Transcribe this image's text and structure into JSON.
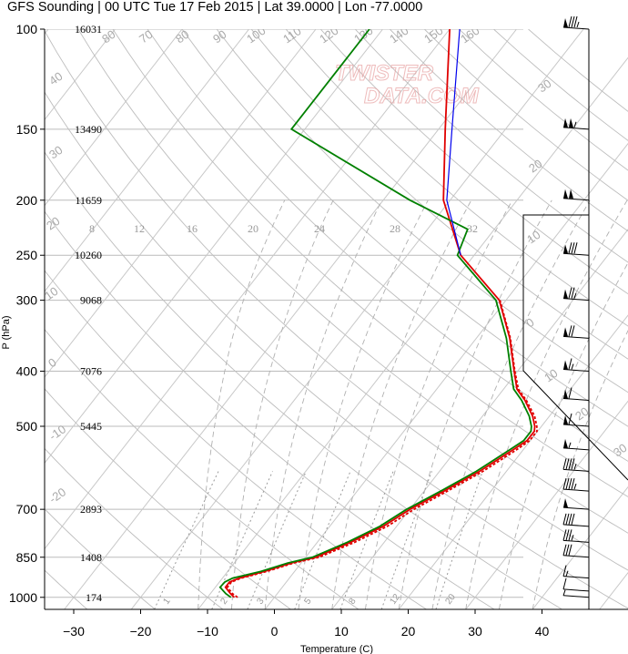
{
  "title": "GFS Sounding | 00 UTC Tue 17 Feb 2015 | Lat 39.0000 | Lon -77.0000",
  "watermark": {
    "line1": "TWISTER",
    "line2": "DATA.COM"
  },
  "chart_data": {
    "type": "line",
    "title": "GFS Sounding | 00 UTC Tue 17 Feb 2015 | Lat 39.0000 | Lon -77.0000",
    "xlabel": "Temperature (C)",
    "ylabel": "P (hPa)",
    "xlim": [
      -34,
      44
    ],
    "ylim": [
      1050,
      100
    ],
    "y_scale": "log",
    "x_ticks": [
      -30,
      -20,
      -10,
      0,
      10,
      20,
      30,
      40
    ],
    "pressure_levels": [
      {
        "p": 100,
        "height": "16031"
      },
      {
        "p": 150,
        "height": "13490"
      },
      {
        "p": 200,
        "height": "11659"
      },
      {
        "p": 250,
        "height": "10260"
      },
      {
        "p": 300,
        "height": "9068"
      },
      {
        "p": 400,
        "height": "7076"
      },
      {
        "p": 500,
        "height": "5445"
      },
      {
        "p": 700,
        "height": "2893"
      },
      {
        "p": 850,
        "height": "1408"
      },
      {
        "p": 1000,
        "height": "174"
      }
    ],
    "series": [
      {
        "key": "temperature",
        "color": "#e00000",
        "dash": "",
        "points": [
          [
            1000,
            -6
          ],
          [
            985,
            -7
          ],
          [
            960,
            -8.5
          ],
          [
            940,
            -8.5
          ],
          [
            925,
            -7.5
          ],
          [
            900,
            -4.5
          ],
          [
            870,
            -1.5
          ],
          [
            850,
            1.5
          ],
          [
            800,
            5
          ],
          [
            750,
            8
          ],
          [
            700,
            10
          ],
          [
            650,
            13
          ],
          [
            600,
            16
          ],
          [
            550,
            18.5
          ],
          [
            530,
            19.5
          ],
          [
            510,
            19.5
          ],
          [
            500,
            19
          ],
          [
            480,
            17.5
          ],
          [
            450,
            14.5
          ],
          [
            430,
            12
          ],
          [
            400,
            9.5
          ],
          [
            350,
            5
          ],
          [
            300,
            -1
          ],
          [
            250,
            -12
          ],
          [
            200,
            -21
          ],
          [
            150,
            -29
          ],
          [
            100,
            -40
          ]
        ]
      },
      {
        "key": "virtual_temperature",
        "color": "#e00000",
        "dash": "3,2",
        "points": [
          [
            1000,
            -5.5
          ],
          [
            985,
            -6.7
          ],
          [
            960,
            -8.2
          ],
          [
            940,
            -8.2
          ],
          [
            925,
            -7.2
          ],
          [
            900,
            -4.1
          ],
          [
            870,
            -1.1
          ],
          [
            850,
            2
          ],
          [
            800,
            5.6
          ],
          [
            750,
            8.6
          ],
          [
            700,
            10.6
          ],
          [
            650,
            13.5
          ],
          [
            600,
            16.5
          ],
          [
            550,
            19
          ],
          [
            530,
            19.9
          ],
          [
            510,
            19.9
          ],
          [
            500,
            19.3
          ],
          [
            480,
            17.8
          ],
          [
            450,
            14.7
          ],
          [
            430,
            12.2
          ],
          [
            400,
            9.6
          ],
          [
            350,
            5.1
          ],
          [
            300,
            -0.9
          ]
        ]
      },
      {
        "key": "dewpoint",
        "color": "#008000",
        "dash": "",
        "points": [
          [
            1000,
            -6.5
          ],
          [
            985,
            -7.7
          ],
          [
            960,
            -9.3
          ],
          [
            940,
            -9.2
          ],
          [
            925,
            -8.5
          ],
          [
            900,
            -5
          ],
          [
            870,
            -2
          ],
          [
            850,
            1
          ],
          [
            800,
            4.5
          ],
          [
            750,
            7.5
          ],
          [
            700,
            9.5
          ],
          [
            650,
            12.5
          ],
          [
            600,
            15.5
          ],
          [
            550,
            18
          ],
          [
            530,
            19
          ],
          [
            510,
            19
          ],
          [
            500,
            18.5
          ],
          [
            480,
            17
          ],
          [
            450,
            14
          ],
          [
            430,
            11.5
          ],
          [
            400,
            9
          ],
          [
            350,
            4.5
          ],
          [
            300,
            -1.5
          ],
          [
            250,
            -12.5
          ],
          [
            225,
            -14
          ],
          [
            200,
            -26
          ],
          [
            150,
            -52
          ],
          [
            100,
            -52
          ]
        ]
      },
      {
        "key": "parcel",
        "color": "#0000ee",
        "dash": "",
        "points": [
          [
            250,
            -12
          ],
          [
            200,
            -20.5
          ],
          [
            150,
            -28
          ],
          [
            100,
            -38.5
          ]
        ]
      }
    ],
    "dry_adiabat_labels": [
      "-20",
      "-10",
      "0",
      "10",
      "20",
      "30",
      "40",
      "50",
      "60",
      "70",
      "80",
      "90",
      "100",
      "110",
      "120",
      "130",
      "140",
      "150",
      "160"
    ],
    "mixing_ratio_labels": [
      "1",
      "2",
      "3",
      "5",
      "8",
      "12",
      "20",
      "8",
      "12",
      "16",
      "20",
      "24",
      "28",
      "32"
    ],
    "wind_barbs": [
      {
        "p": 100,
        "speed_kt": 85
      },
      {
        "p": 150,
        "speed_kt": 105
      },
      {
        "p": 200,
        "speed_kt": 100
      },
      {
        "p": 250,
        "speed_kt": 80
      },
      {
        "p": 300,
        "speed_kt": 75
      },
      {
        "p": 350,
        "speed_kt": 70
      },
      {
        "p": 400,
        "speed_kt": 65
      },
      {
        "p": 450,
        "speed_kt": 60
      },
      {
        "p": 500,
        "speed_kt": 60
      },
      {
        "p": 550,
        "speed_kt": 55
      },
      {
        "p": 600,
        "speed_kt": 45
      },
      {
        "p": 650,
        "speed_kt": 45
      },
      {
        "p": 700,
        "speed_kt": 50
      },
      {
        "p": 750,
        "speed_kt": 40
      },
      {
        "p": 800,
        "speed_kt": 35
      },
      {
        "p": 850,
        "speed_kt": 30
      },
      {
        "p": 925,
        "speed_kt": 15
      },
      {
        "p": 975,
        "speed_kt": 10
      },
      {
        "p": 1000,
        "speed_kt": 5
      }
    ]
  }
}
